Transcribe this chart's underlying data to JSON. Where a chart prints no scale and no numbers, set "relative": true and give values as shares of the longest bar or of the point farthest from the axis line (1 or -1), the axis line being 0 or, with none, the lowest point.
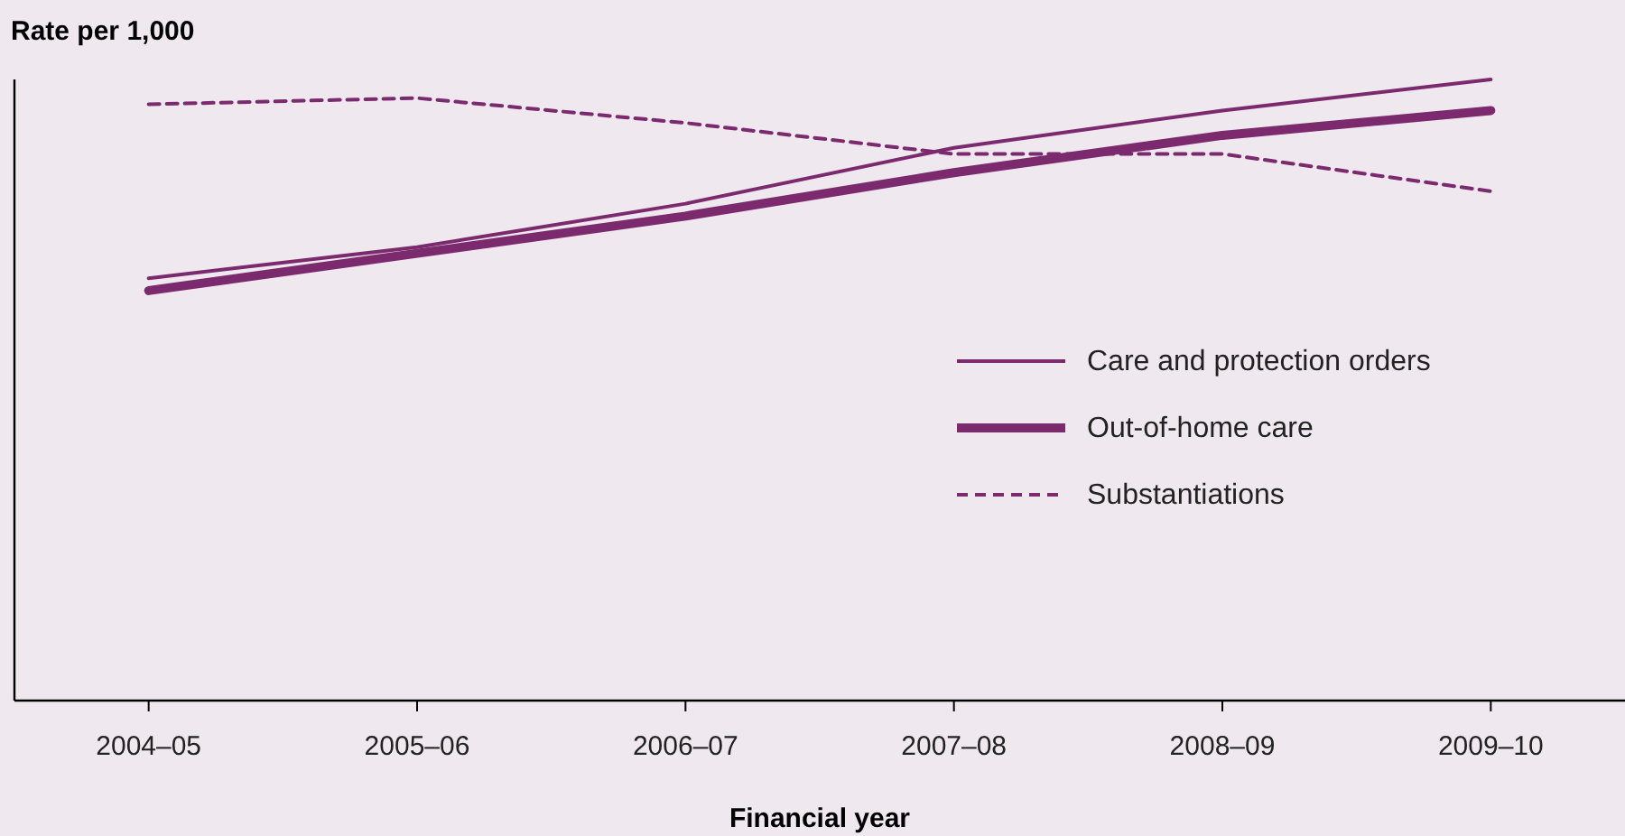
{
  "chart_data": {
    "type": "line",
    "relative": true,
    "ylabel": "Rate per 1,000",
    "xlabel": "Financial year",
    "categories": [
      "2004–05",
      "2005–06",
      "2006–07",
      "2007–08",
      "2008–09",
      "2009–10"
    ],
    "legend": "right",
    "marker": "none",
    "series": [
      {
        "name": "Care and protection orders",
        "color": "#7b2a6e",
        "line_style": "solid",
        "values": [
          0.68,
          0.73,
          0.8,
          0.89,
          0.95,
          1
        ]
      },
      {
        "name": "Out-of-home care",
        "color": "#7b2a6e",
        "line_style": "solid",
        "values": [
          0.66,
          0.72,
          0.78,
          0.85,
          0.91,
          0.95
        ]
      },
      {
        "name": "Substantiations",
        "color": "#7b2a6e",
        "line_style": "dashed",
        "values": [
          0.96,
          0.97,
          0.93,
          0.88,
          0.88,
          0.82
        ]
      }
    ]
  }
}
